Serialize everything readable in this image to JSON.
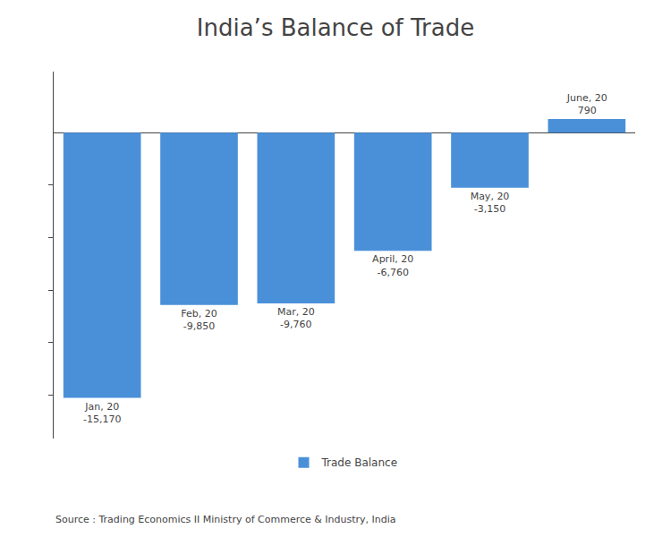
{
  "chart_data": {
    "type": "bar",
    "title": "India’s Balance of Trade",
    "categories": [
      "Jan, 20",
      "Feb, 20",
      "Mar, 20",
      "April, 20",
      "May, 20",
      "June, 20"
    ],
    "series": [
      {
        "name": "Trade Balance",
        "color": "#4A90D9",
        "values": [
          -15170,
          -9850,
          -9760,
          -6760,
          -3150,
          790
        ],
        "value_labels": [
          "-15,170",
          "-9,850",
          "-9,760",
          "-6,760",
          "-3,150",
          "790"
        ]
      }
    ],
    "ylim": [
      -17500,
      3500
    ],
    "yticks": [
      -15000,
      -12000,
      -9000,
      -6000,
      -3000
    ],
    "tick_labels": false,
    "grid": false,
    "legend": "bottom",
    "data_labels": true,
    "annotations": [
      "Source : Trading Economics II Ministry of Commerce & Industry, India"
    ]
  }
}
